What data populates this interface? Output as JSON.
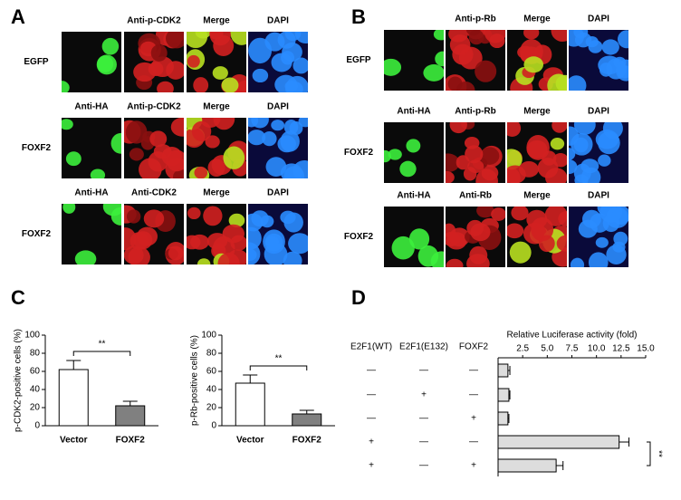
{
  "panels": {
    "A": {
      "label": "A",
      "rows": [
        {
          "label": "EGFP",
          "columns": [
            "Anti-p-CDK2",
            "Merge",
            "DAPI"
          ]
        },
        {
          "label": "FOXF2",
          "columns": [
            "Anti-HA",
            "Anti-p-CDK2",
            "Merge",
            "DAPI"
          ]
        },
        {
          "label": "FOXF2",
          "columns": [
            "Anti-HA",
            "Anti-CDK2",
            "Merge",
            "DAPI"
          ]
        }
      ]
    },
    "B": {
      "label": "B",
      "rows": [
        {
          "label": "EGFP",
          "columns": [
            "Anti-p-Rb",
            "Merge",
            "DAPI"
          ]
        },
        {
          "label": "FOXF2",
          "columns": [
            "Anti-HA",
            "Anti-p-Rb",
            "Merge",
            "DAPI"
          ]
        },
        {
          "label": "FOXF2",
          "columns": [
            "Anti-HA",
            "Anti-Rb",
            "Merge",
            "DAPI"
          ]
        }
      ]
    },
    "C": {
      "label": "C"
    },
    "D": {
      "label": "D"
    }
  },
  "chart_data": [
    {
      "type": "bar",
      "ylabel": "p-CDK2-positive cells (%)",
      "categories": [
        "Vector",
        "FOXF2"
      ],
      "values": [
        62,
        22
      ],
      "errors": [
        10,
        5
      ],
      "colors": [
        "#ffffff",
        "#808080"
      ],
      "ylim": [
        0,
        100
      ],
      "yticks": [
        0,
        20,
        40,
        60,
        80,
        100
      ],
      "annotations": [
        "**"
      ]
    },
    {
      "type": "bar",
      "ylabel": "p-Rb-positive cells (%)",
      "categories": [
        "Vector",
        "FOXF2"
      ],
      "values": [
        47,
        13
      ],
      "errors": [
        9,
        4
      ],
      "colors": [
        "#ffffff",
        "#808080"
      ],
      "ylim": [
        0,
        100
      ],
      "yticks": [
        0,
        20,
        40,
        60,
        80,
        100
      ],
      "annotations": [
        "**"
      ]
    },
    {
      "type": "barh",
      "xlabel": "Relative Luciferase activity (fold)",
      "values": [
        1.0,
        1.1,
        1.0,
        12.3,
        5.9
      ],
      "errors": [
        0.2,
        0.1,
        0.1,
        1.0,
        0.7
      ],
      "color": "#dddddd",
      "xlim": [
        0,
        15
      ],
      "xticks": [
        2.5,
        {
          "value": 5,
          "label": "5.0"
        },
        7.5,
        {
          "value": 10,
          "label": "10.0"
        },
        12.5,
        {
          "value": 15,
          "label": "15.0"
        }
      ],
      "annotations": [
        "**"
      ],
      "conditions": {
        "headers": [
          "E2F1(WT)",
          "E2F1(E132)",
          "FOXF2"
        ],
        "rows": [
          [
            "—",
            "—",
            "—"
          ],
          [
            "—",
            "+",
            "—"
          ],
          [
            "—",
            "—",
            "+"
          ],
          [
            "+",
            "—",
            "—"
          ],
          [
            "+",
            "—",
            "+"
          ]
        ]
      }
    }
  ]
}
